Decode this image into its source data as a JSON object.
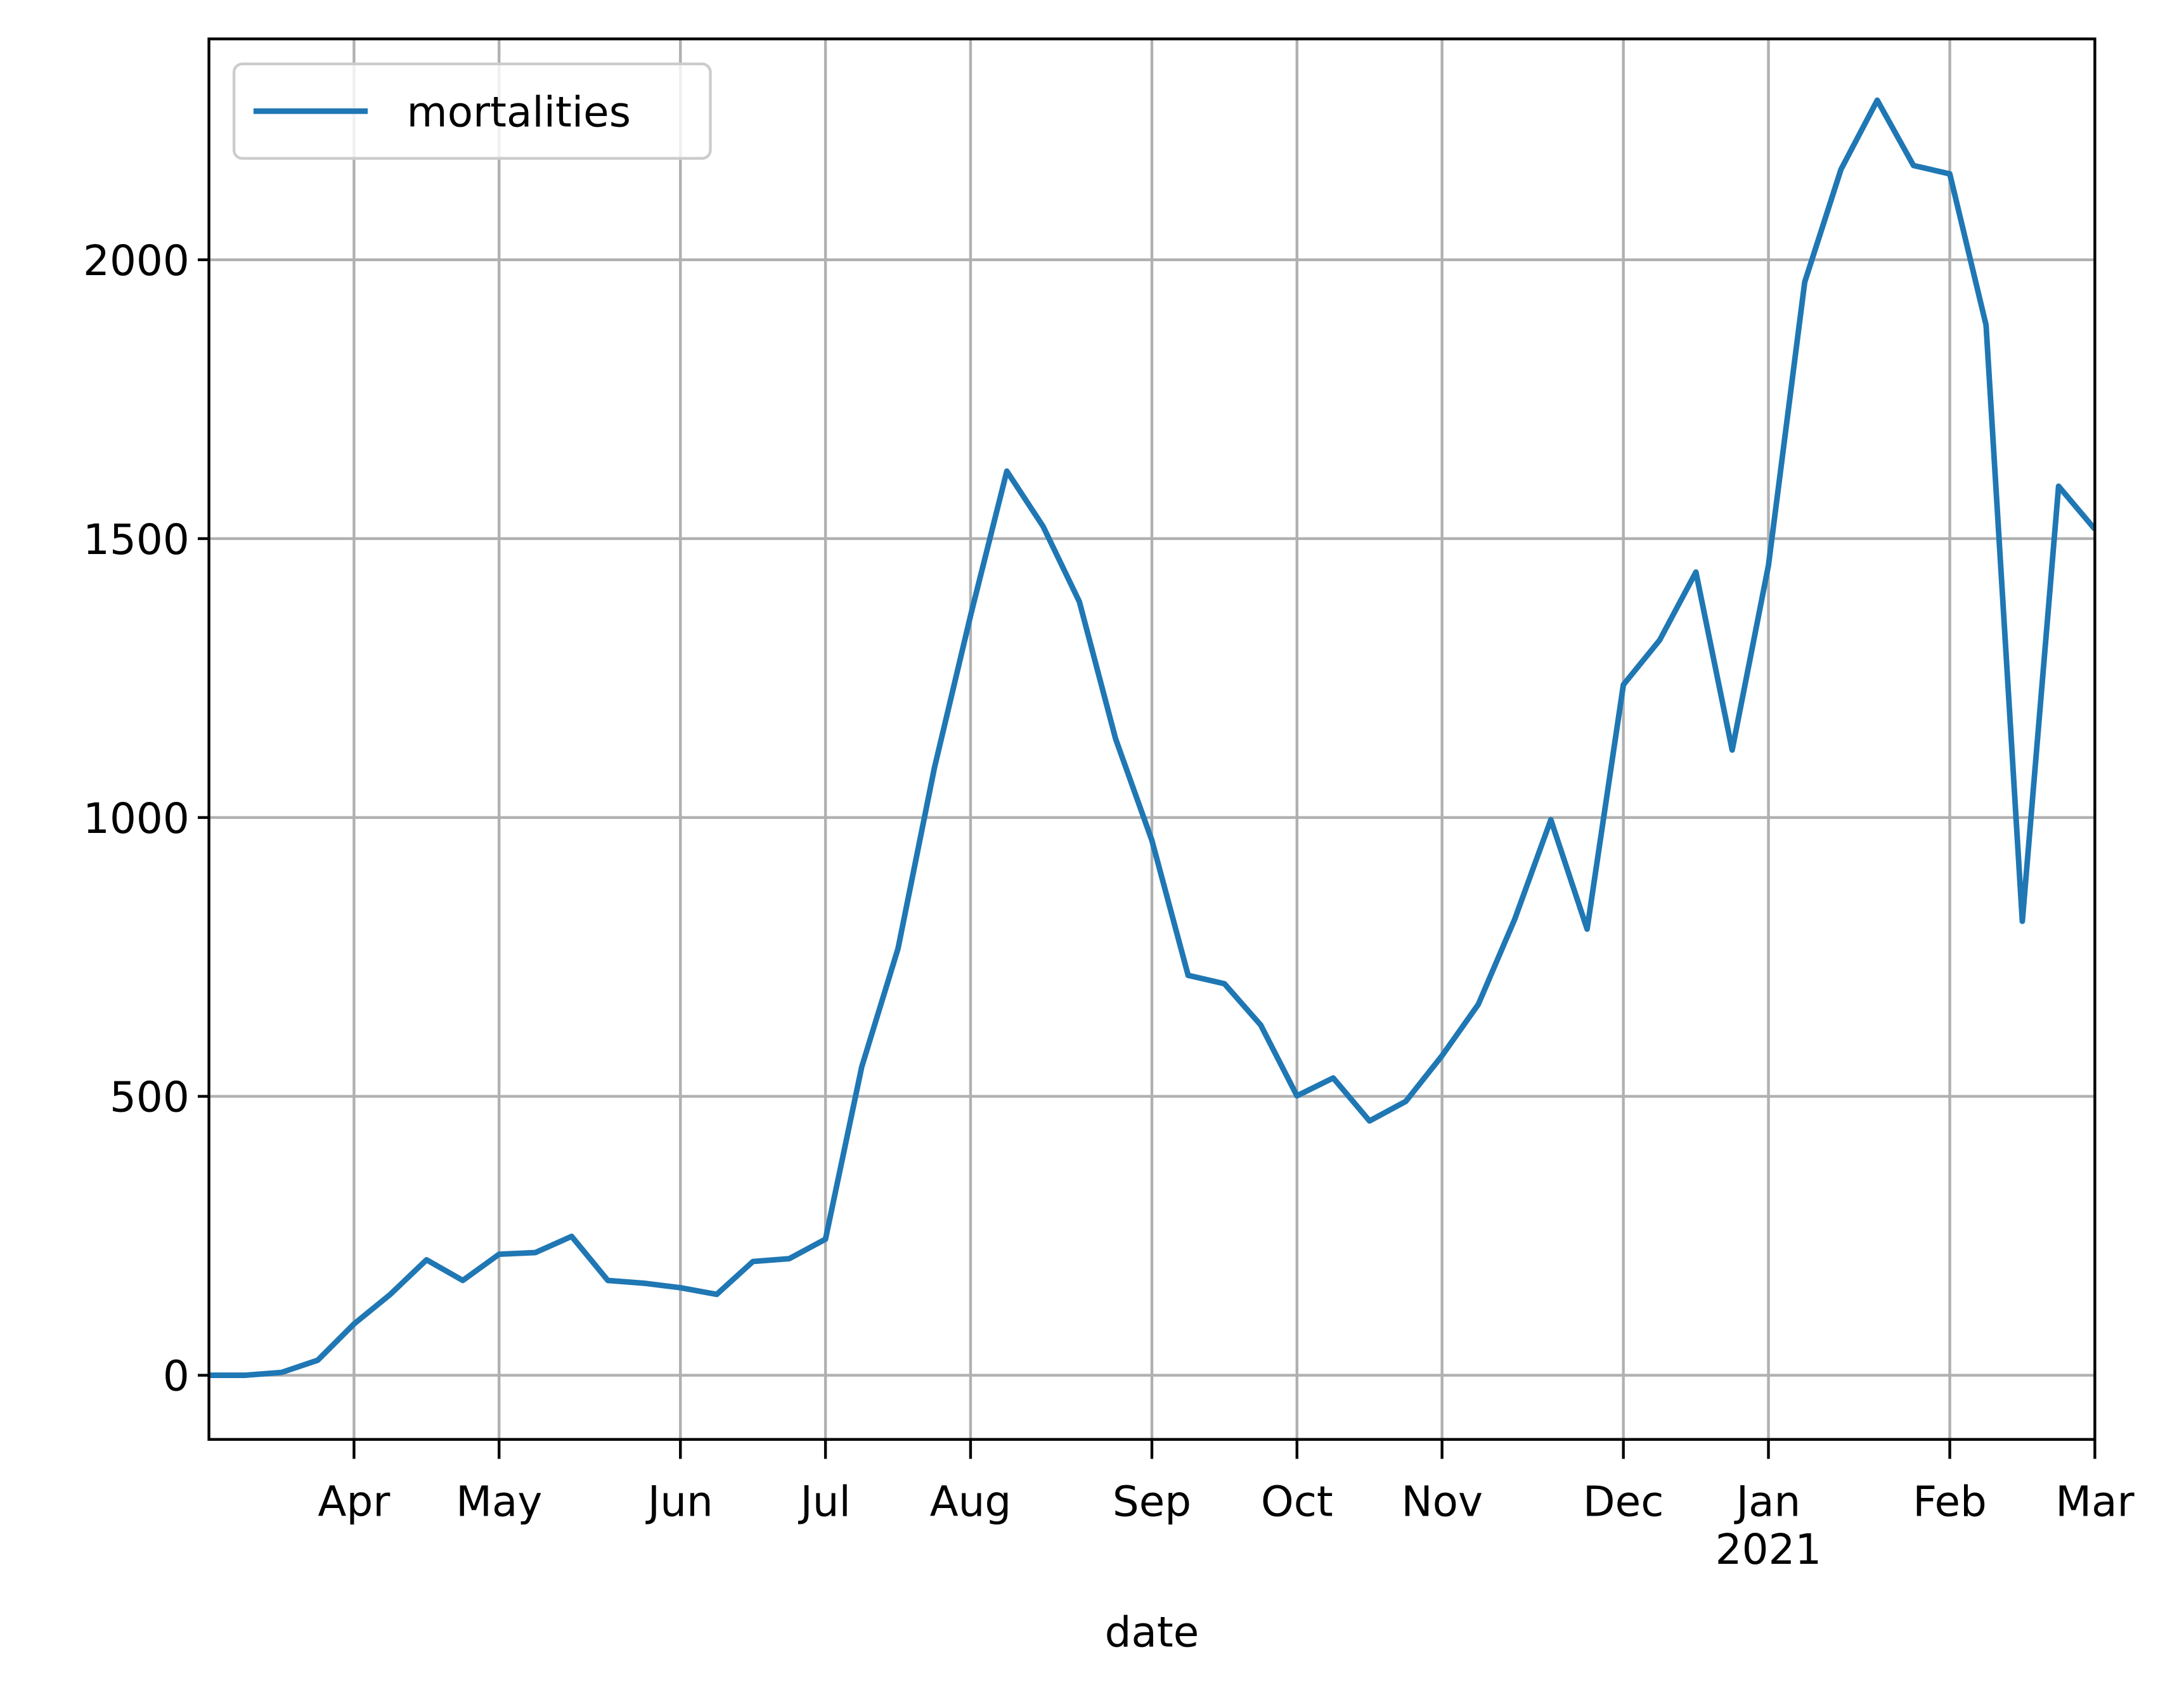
{
  "chart_data": {
    "type": "line",
    "categories": [
      null,
      null,
      null,
      null,
      null,
      null,
      null,
      null,
      null,
      null,
      null,
      null,
      null,
      null,
      null,
      null,
      null,
      null,
      null,
      null,
      null,
      null,
      null,
      null,
      null,
      null,
      null,
      null,
      null,
      null,
      null,
      null,
      null,
      null,
      null,
      null,
      null,
      null,
      null,
      null,
      null,
      null,
      null,
      null,
      null,
      null,
      null,
      null,
      null,
      null,
      null,
      null,
      null
    ],
    "series": [
      {
        "name": "mortalities",
        "color": "#1f77b4",
        "values": [
          0,
          0,
          5,
          27,
          92,
          145,
          207,
          170,
          217,
          220,
          249,
          170,
          165,
          157,
          145,
          204,
          209,
          244,
          553,
          765,
          1088,
          1362,
          1621,
          1522,
          1387,
          1141,
          959,
          717,
          702,
          628,
          501,
          533,
          456,
          491,
          573,
          665,
          817,
          996,
          800,
          1238,
          1318,
          1440,
          1121,
          1452,
          1960,
          2162,
          2286,
          2169,
          2154,
          1883,
          814,
          1594,
          1517
        ]
      }
    ],
    "x_label": "date",
    "xlim": [
      0,
      52
    ],
    "xticks": [
      {
        "value": 4,
        "label": "Apr"
      },
      {
        "value": 8,
        "label": "May"
      },
      {
        "value": 13,
        "label": "Jun"
      },
      {
        "value": 17,
        "label": "Jul"
      },
      {
        "value": 21,
        "label": "Aug"
      },
      {
        "value": 26,
        "label": "Sep"
      },
      {
        "value": 30,
        "label": "Oct"
      },
      {
        "value": 34,
        "label": "Nov"
      },
      {
        "value": 39,
        "label": "Dec"
      },
      {
        "value": 43,
        "label": "Jan\n2021"
      },
      {
        "value": 48,
        "label": "Feb"
      },
      {
        "value": 52,
        "label": "Mar"
      }
    ],
    "ylim": [
      -115,
      2396
    ],
    "yticks": [
      0,
      500,
      1000,
      1500,
      2000
    ],
    "grid": true,
    "legend": "upper left"
  }
}
